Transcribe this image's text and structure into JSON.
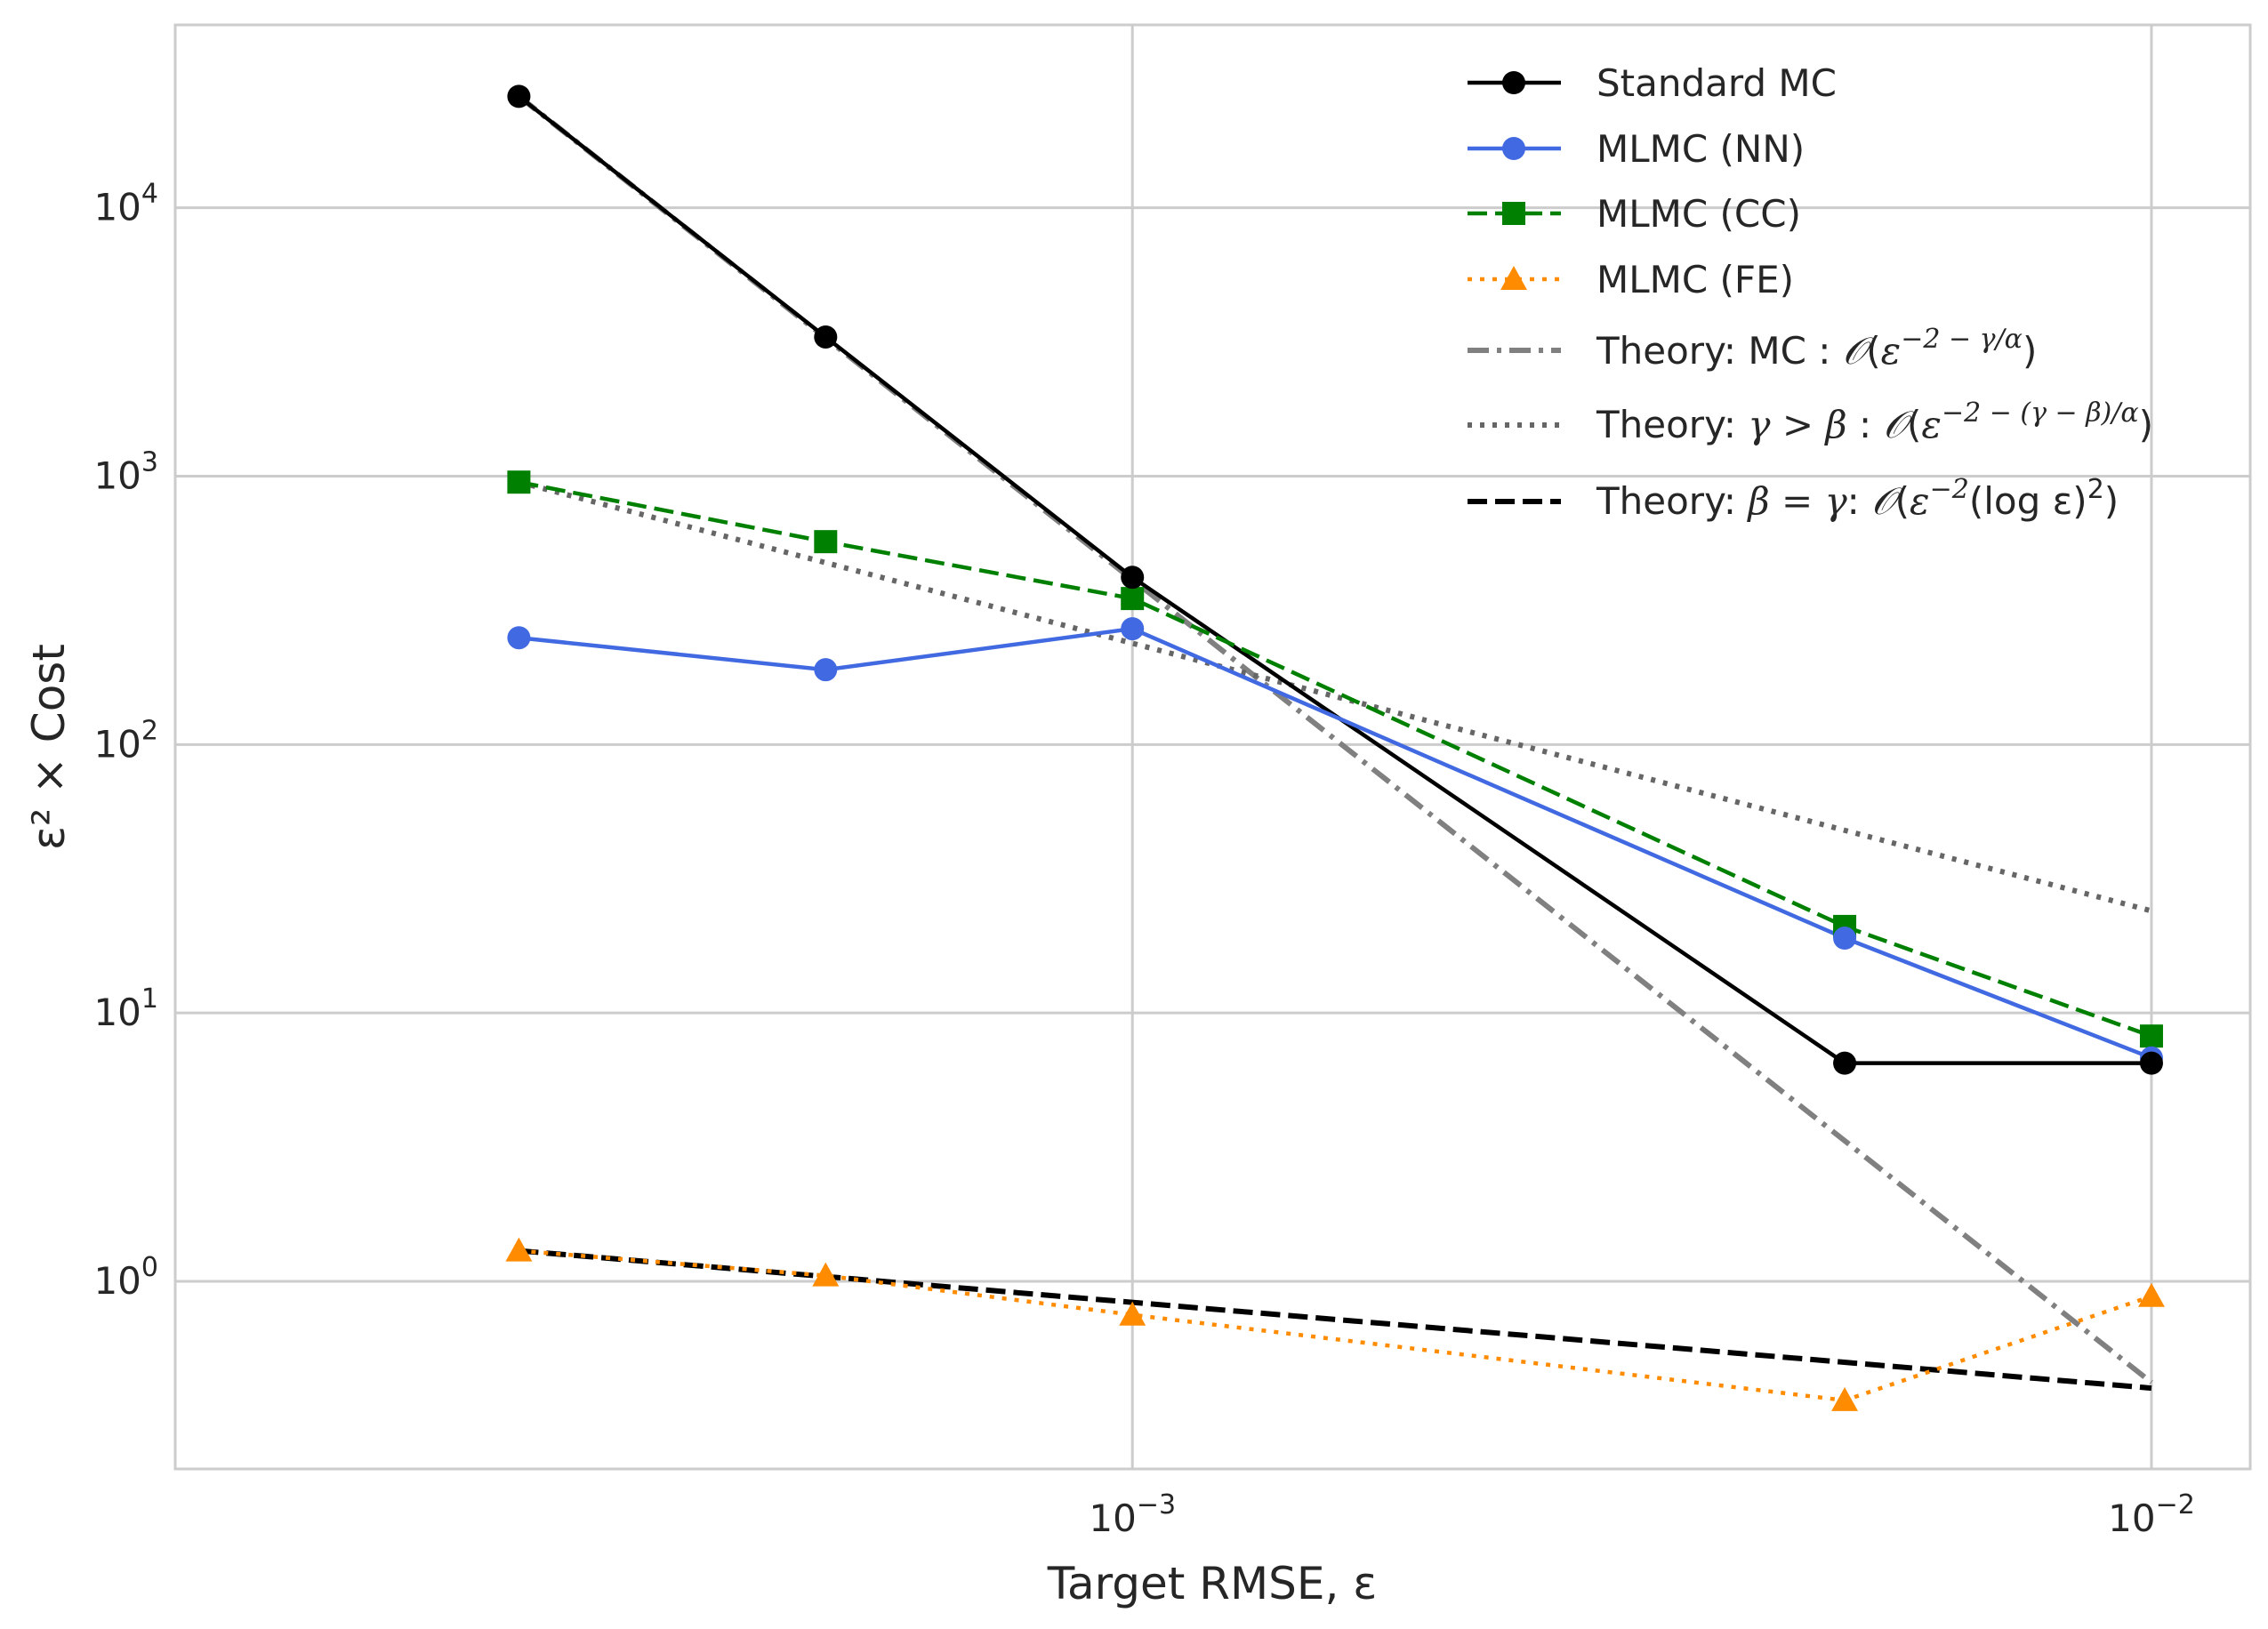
{
  "chart_data": {
    "type": "line",
    "xscale": "log",
    "yscale": "log",
    "xlim": [
      0.000115,
      0.0125
    ],
    "ylim": [
      0.2,
      48000
    ],
    "grid": true,
    "legend_position": "top-right",
    "xlabel": "Target RMSE, ε",
    "ylabel": "ε² × Cost",
    "xticks": [
      {
        "value": 0.001,
        "base": "10",
        "exp": "−3"
      },
      {
        "value": 0.01,
        "base": "10",
        "exp": "−2"
      }
    ],
    "yticks": [
      {
        "value": 1,
        "base": "10",
        "exp": "0"
      },
      {
        "value": 10,
        "base": "10",
        "exp": "1"
      },
      {
        "value": 100,
        "base": "10",
        "exp": "2"
      },
      {
        "value": 1000,
        "base": "10",
        "exp": "3"
      },
      {
        "value": 10000,
        "base": "10",
        "exp": "4"
      }
    ],
    "series": [
      {
        "name": "Standard MC",
        "color": "#000000",
        "dash": "solid",
        "marker": "circle",
        "x": [
          0.00025,
          0.0005,
          0.001,
          0.005,
          0.01
        ],
        "y": [
          26000,
          3300,
          420,
          6.5,
          6.5
        ]
      },
      {
        "name": "MLMC (NN)",
        "color": "#4169e1",
        "dash": "solid",
        "marker": "circle",
        "x": [
          0.00025,
          0.0005,
          0.001,
          0.005,
          0.01
        ],
        "y": [
          250,
          190,
          270,
          19,
          6.8
        ]
      },
      {
        "name": "MLMC (CC)",
        "color": "#008000",
        "dash": "dashed",
        "marker": "square",
        "x": [
          0.00025,
          0.0005,
          0.001,
          0.005,
          0.01
        ],
        "y": [
          950,
          570,
          350,
          21,
          8.2
        ]
      },
      {
        "name": "MLMC (FE)",
        "color": "#ff8c00",
        "dash": "dotted",
        "marker": "triangle",
        "x": [
          0.00025,
          0.0005,
          0.001,
          0.005,
          0.01
        ],
        "y": [
          1.3,
          1.05,
          0.75,
          0.36,
          0.88
        ]
      },
      {
        "name": "Theory: MC : 𝒪(ε^(−2 − γ/α))",
        "color": "#808080",
        "dash": "dashdot",
        "marker": "none",
        "x": [
          0.00025,
          0.01
        ],
        "y": [
          26000,
          0.42
        ]
      },
      {
        "name": "Theory: γ > β : 𝒪(ε^(−2 − (γ − β)/α))",
        "color": "#666666",
        "dash": "dotted",
        "marker": "none",
        "x": [
          0.00025,
          0.01
        ],
        "y": [
          950,
          24
        ]
      },
      {
        "name": "Theory: β = γ: 𝒪(ε^(−2) (log ε)²)",
        "color": "#000000",
        "dash": "dashed",
        "marker": "none",
        "x": [
          0.00025,
          0.01
        ],
        "y": [
          1.3,
          0.4
        ]
      }
    ]
  },
  "legend": {
    "items": [
      {
        "key": "std",
        "text": "Standard MC"
      },
      {
        "key": "nn",
        "text": "MLMC (NN)"
      },
      {
        "key": "cc",
        "text": "MLMC (CC)"
      },
      {
        "key": "fe",
        "text": "MLMC (FE)"
      },
      {
        "key": "th_mc",
        "prefix": "Theory: MC : ",
        "cal": "𝒪",
        "open": "(",
        "eps": "ε",
        "sup": "−2 − γ/α",
        "close": ")"
      },
      {
        "key": "th_gb",
        "prefix": "Theory: ",
        "cond": "γ > β",
        "sep": " : ",
        "cal": "𝒪",
        "open": "(",
        "eps": "ε",
        "sup": "−2 − (γ − β)/α",
        "close": ")"
      },
      {
        "key": "th_bg",
        "prefix": "Theory: ",
        "cond": "β = γ",
        "sep": ": ",
        "cal": "𝒪",
        "open": "(",
        "eps": "ε",
        "sup": "−2",
        "mid": "(log ε)",
        "sup2": "2",
        "close": ")"
      }
    ]
  }
}
